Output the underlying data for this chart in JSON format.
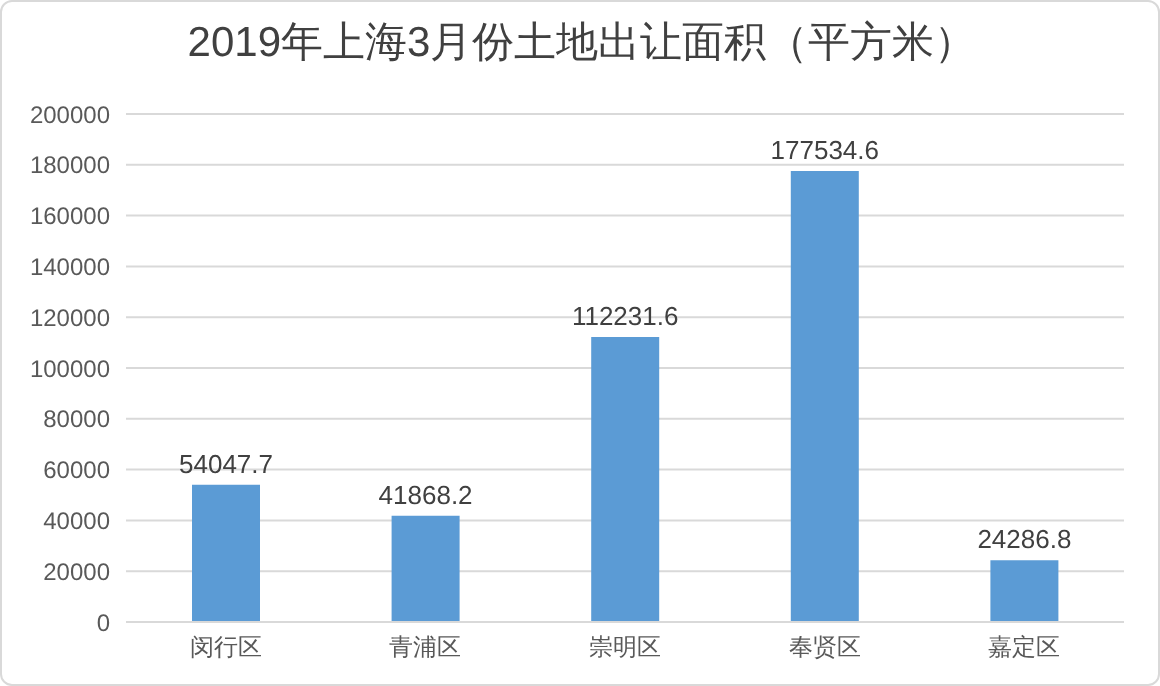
{
  "chart_data": {
    "type": "bar",
    "title": "2019年上海3月份土地出让面积（平方米）",
    "categories": [
      "闵行区",
      "青浦区",
      "崇明区",
      "奉贤区",
      "嘉定区"
    ],
    "values": [
      54047.7,
      41868.2,
      112231.6,
      177534.6,
      24286.8
    ],
    "color": "#5b9bd5",
    "ylim": [
      0,
      200000
    ],
    "yticks": [
      0,
      20000,
      40000,
      60000,
      80000,
      100000,
      120000,
      140000,
      160000,
      180000,
      200000
    ],
    "grid": "y",
    "data_labels": true
  }
}
